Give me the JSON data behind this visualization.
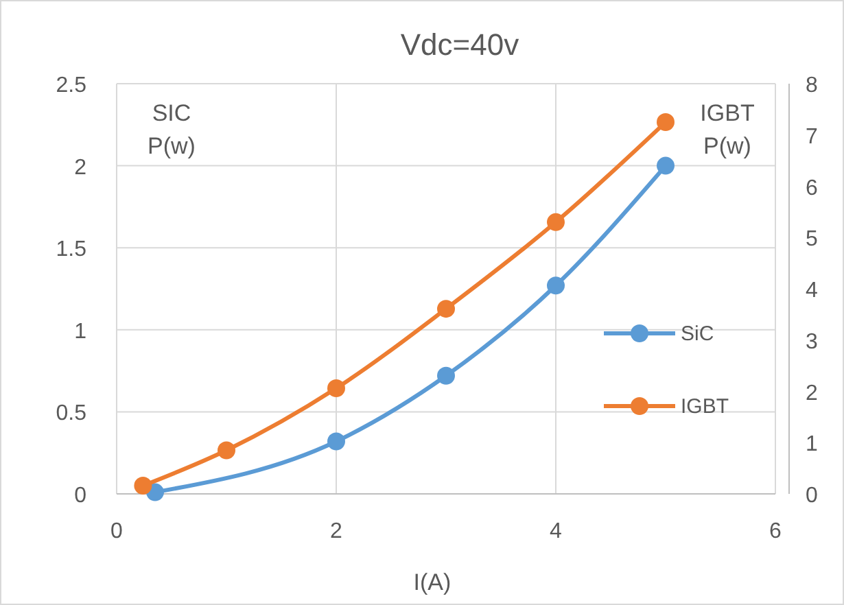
{
  "chart_data": {
    "type": "line",
    "title": "Vdc=40v",
    "xlabel": "I(A)",
    "ylabel": "SIC P(w)",
    "y2label": "IGBT P(w)",
    "xlim": [
      0,
      6
    ],
    "xticks": [
      0,
      2,
      4,
      6
    ],
    "ylim": [
      0,
      2.5
    ],
    "yticks": [
      0,
      0.5,
      1,
      1.5,
      2,
      2.5
    ],
    "y2lim": [
      0,
      8
    ],
    "y2ticks": [
      0,
      1,
      2,
      3,
      4,
      5,
      6,
      7,
      8
    ],
    "grid": true,
    "legend": "right",
    "marker": "circle",
    "series": [
      {
        "name": "SiC",
        "color": "#5b9bd5",
        "x": [
          0.35,
          2,
          3,
          4,
          5
        ],
        "values": [
          0.01,
          0.32,
          0.72,
          1.27,
          2.0
        ]
      },
      {
        "name": "IGBT",
        "color": "#ed7d31",
        "axis": "y2",
        "x": [
          0.24,
          1,
          2,
          3,
          4,
          5
        ],
        "values": [
          0.16,
          0.85,
          2.06,
          3.61,
          5.3,
          7.25
        ]
      }
    ]
  }
}
